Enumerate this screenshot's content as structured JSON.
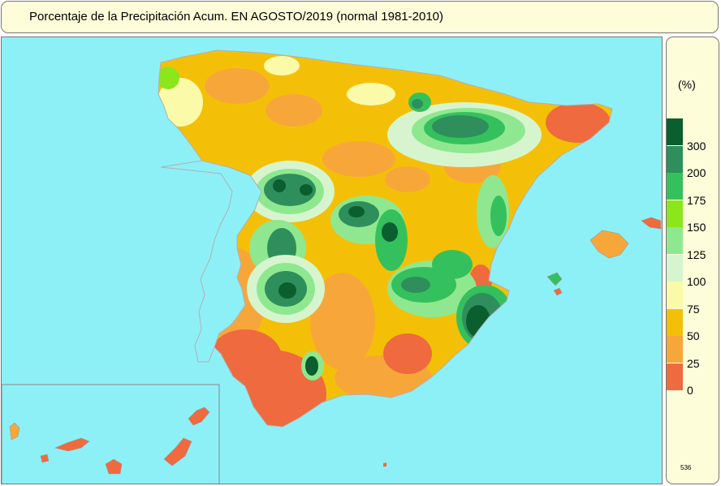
{
  "title": "Porcentaje de la Precipitación Acum. EN  AGOSTO/2019  (normal 1981-2010)",
  "legend": {
    "unit": "(%)",
    "ticks": [
      "300",
      "200",
      "175",
      "150",
      "125",
      "100",
      "75",
      "50",
      "25",
      "0"
    ],
    "colors": [
      "#0b5e2e",
      "#2e8f5c",
      "#35c05e",
      "#8be61c",
      "#8fe88f",
      "#d6f5cf",
      "#fbfaa8",
      "#f4c007",
      "#f7a73a",
      "#ef6a3e"
    ]
  },
  "map_code": "536",
  "colors": {
    "sea": "#8ef0f7",
    "panel": "#fdfdd9",
    "inset_border": "#888888"
  }
}
